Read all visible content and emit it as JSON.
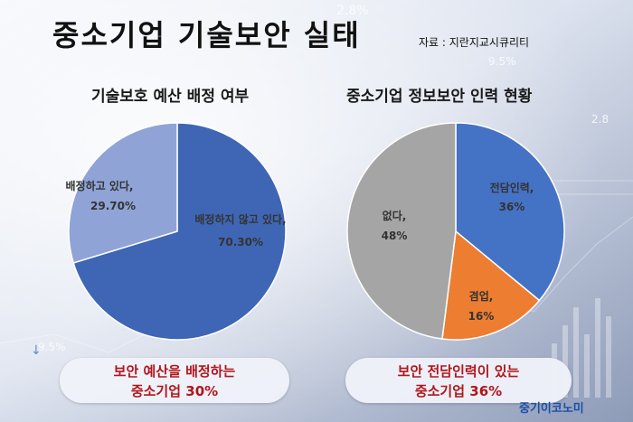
{
  "page": {
    "title": "중소기업 기술보안 실태",
    "source": "자료 : 지란지교시큐리티",
    "brand": "중기이코노미",
    "callouts": [
      {
        "line1": "보안 예산을 배정하는",
        "line2": "중소기업 30%"
      },
      {
        "line1": "보안 전담인력이 있는",
        "line2": "중소기업 36%"
      }
    ],
    "background_numbers": [
      "2.8%",
      "9.5%",
      "2.8",
      "9.5%"
    ]
  },
  "chart_data": [
    {
      "type": "pie",
      "title": "기술보호 예산 배정 여부",
      "slices": [
        {
          "label": "배정하지 않고 있다,",
          "value_label": "70.30%",
          "value": 70.3,
          "color": "#3f66b5"
        },
        {
          "label": "배정하고 있다,",
          "value_label": "29.70%",
          "value": 29.7,
          "color": "#8fa3d6"
        }
      ]
    },
    {
      "type": "pie",
      "title": "중소기업 정보보안 인력 현황",
      "slices": [
        {
          "label": "전담인력,",
          "value_label": "36%",
          "value": 36,
          "color": "#4472c4"
        },
        {
          "label": "겸업,",
          "value_label": "16%",
          "value": 16,
          "color": "#ed7d31"
        },
        {
          "label": "없다,",
          "value_label": "48%",
          "value": 48,
          "color": "#a5a5a5"
        }
      ]
    }
  ]
}
